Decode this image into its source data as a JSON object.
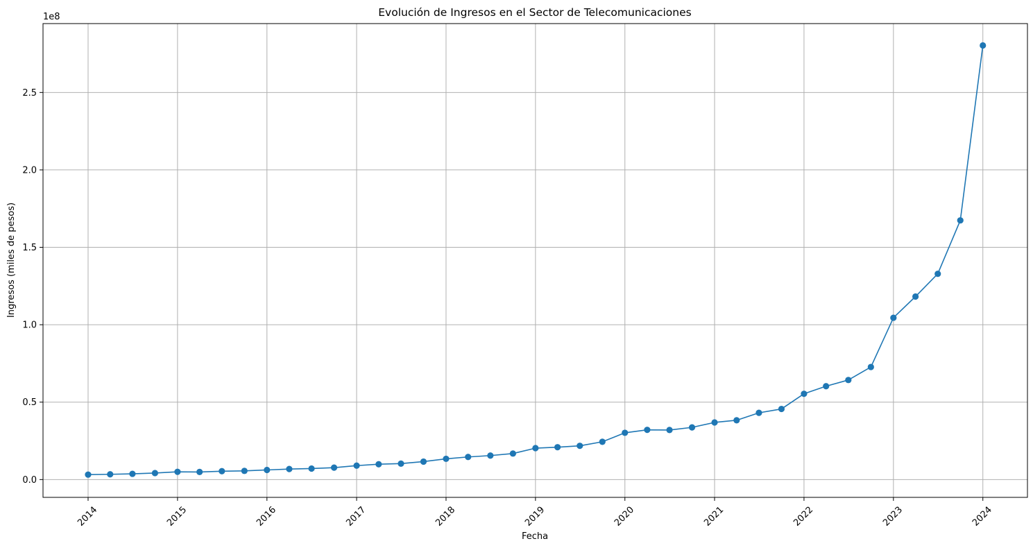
{
  "chart_data": {
    "type": "line",
    "title": "Evolución de Ingresos en el Sector de Telecomunicaciones",
    "xlabel": "Fecha",
    "ylabel": "Ingresos (miles de pesos)",
    "y_offset_label": "1e8",
    "y_multiplier": 100000000,
    "xlim": [
      "2013-07-01",
      "2024-07-01"
    ],
    "ylim": [
      -11500000,
      294500000
    ],
    "x_ticks": [
      "2014-01-01",
      "2015-01-01",
      "2016-01-01",
      "2017-01-01",
      "2018-01-01",
      "2019-01-01",
      "2020-01-01",
      "2021-01-01",
      "2022-01-01",
      "2023-01-01",
      "2024-01-01"
    ],
    "x_tick_labels": [
      "2014",
      "2015",
      "2016",
      "2017",
      "2018",
      "2019",
      "2020",
      "2021",
      "2022",
      "2023",
      "2024"
    ],
    "y_ticks": [
      0,
      50000000,
      100000000,
      150000000,
      200000000,
      250000000
    ],
    "y_tick_labels": [
      "0.0",
      "0.5",
      "1.0",
      "1.5",
      "2.0",
      "2.5"
    ],
    "grid": true,
    "color": "#1f77b4",
    "marker": "circle",
    "series": [
      {
        "x": [
          "2014-01-01",
          "2014-04-01",
          "2014-07-01",
          "2014-10-01",
          "2015-01-01",
          "2015-04-01",
          "2015-07-01",
          "2015-10-01",
          "2016-01-01",
          "2016-04-01",
          "2016-07-01",
          "2016-10-01",
          "2017-01-01",
          "2017-04-01",
          "2017-07-01",
          "2017-10-01",
          "2018-01-01",
          "2018-04-01",
          "2018-07-01",
          "2018-10-01",
          "2019-01-01",
          "2019-04-01",
          "2019-07-01",
          "2019-10-01",
          "2020-01-01",
          "2020-04-01",
          "2020-07-01",
          "2020-10-01",
          "2021-01-01",
          "2021-04-01",
          "2021-07-01",
          "2021-10-01",
          "2022-01-01",
          "2022-04-01",
          "2022-07-01",
          "2022-10-01",
          "2023-01-01",
          "2023-04-01",
          "2023-07-01",
          "2023-10-01",
          "2024-01-01"
        ],
        "values": [
          3200000,
          3400000,
          3700000,
          4200000,
          5000000,
          4900000,
          5400000,
          5600000,
          6200000,
          6800000,
          7100000,
          7700000,
          9000000,
          9900000,
          10300000,
          11600000,
          13400000,
          14600000,
          15500000,
          16800000,
          20300000,
          20900000,
          21800000,
          24400000,
          30200000,
          32100000,
          32000000,
          33700000,
          36900000,
          38300000,
          43100000,
          45600000,
          55400000,
          60300000,
          64300000,
          72700000,
          104500000,
          118200000,
          132900000,
          167400000,
          280400000
        ]
      }
    ]
  }
}
